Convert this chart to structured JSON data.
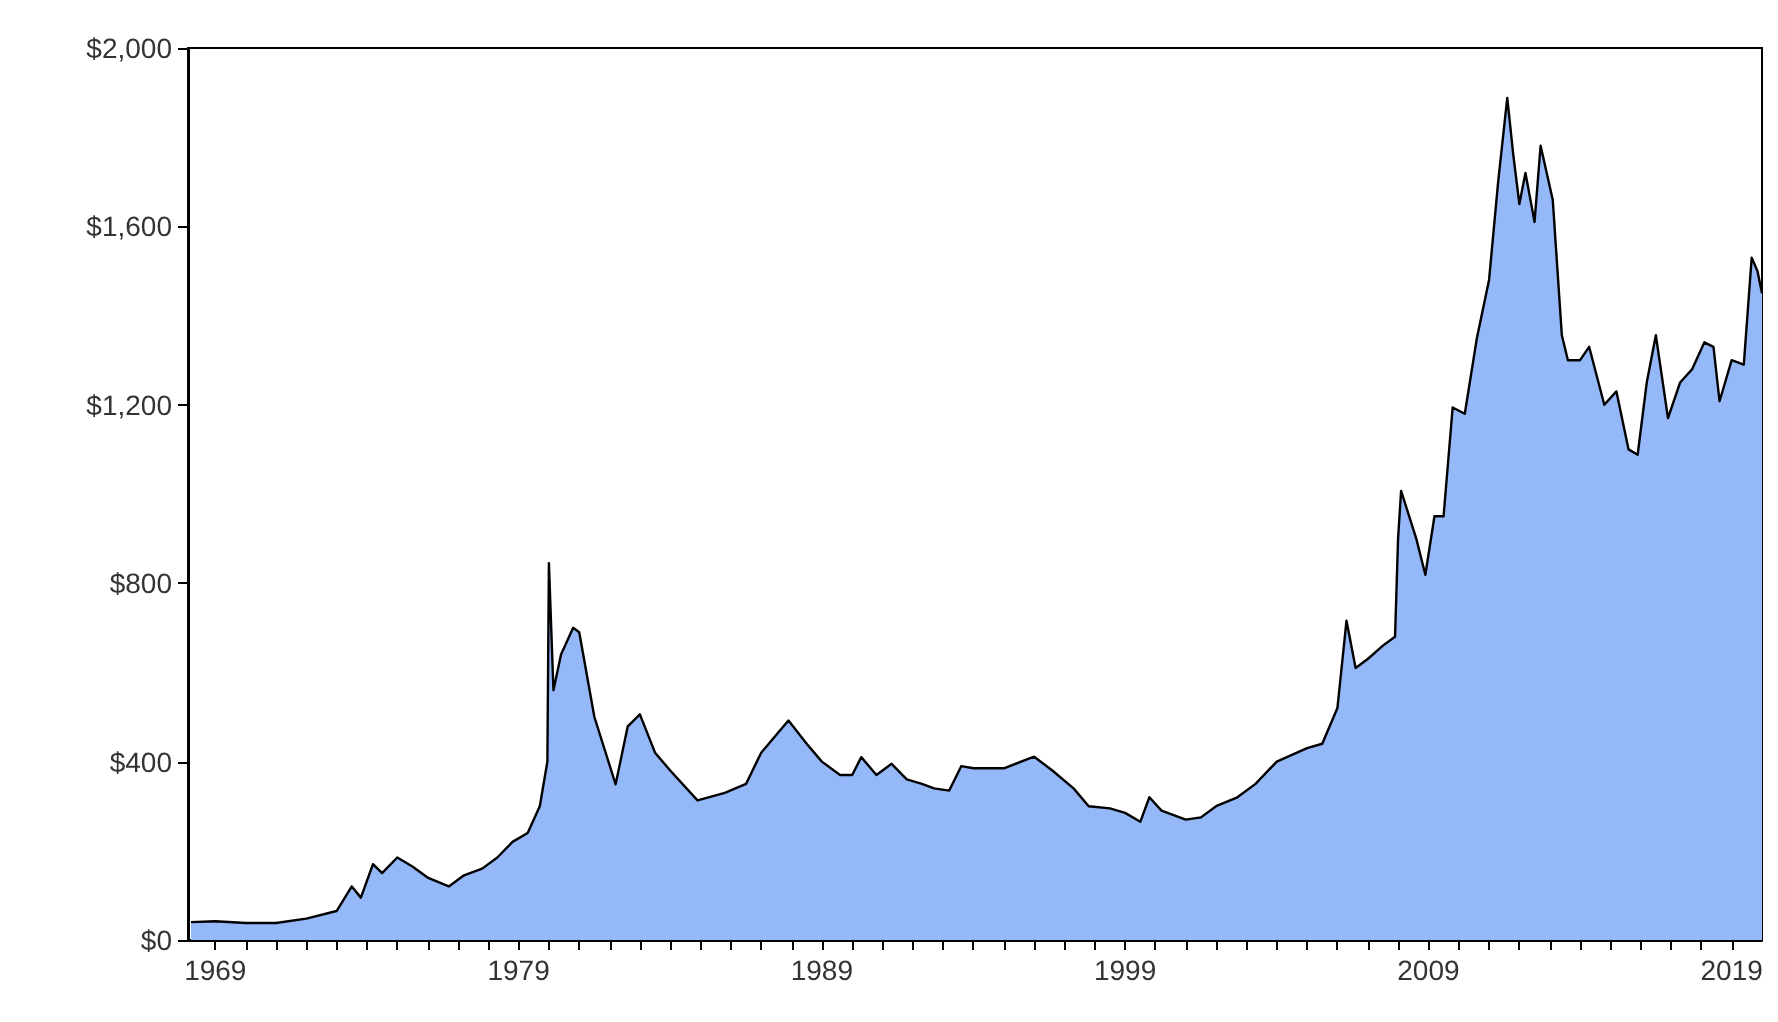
{
  "chart_data": {
    "type": "area",
    "x": [
      1968.2,
      1969,
      1970,
      1971,
      1972,
      1973,
      1973.5,
      1973.8,
      1974.2,
      1974.5,
      1975,
      1975.5,
      1976,
      1976.7,
      1977.2,
      1977.8,
      1978.3,
      1978.8,
      1979.3,
      1979.7,
      1979.95,
      1980,
      1980.15,
      1980.4,
      1980.8,
      1981,
      1981.5,
      1982.2,
      1982.6,
      1983,
      1983.5,
      1984,
      1984.9,
      1985.8,
      1986.5,
      1987,
      1987.5,
      1987.9,
      1988.5,
      1989,
      1989.6,
      1990,
      1990.3,
      1990.8,
      1991.3,
      1991.8,
      1992.3,
      1992.7,
      1993.2,
      1993.6,
      1994,
      1995,
      1996,
      1996.6,
      1997.3,
      1997.8,
      1998.5,
      1999,
      1999.5,
      1999.8,
      2000.2,
      2001,
      2001.5,
      2002,
      2002.7,
      2003.3,
      2004,
      2005,
      2005.5,
      2006,
      2006.3,
      2006.6,
      2007,
      2007.5,
      2007.9,
      2008,
      2008.1,
      2008.6,
      2008.9,
      2009.2,
      2009.5,
      2009.8,
      2010.2,
      2010.6,
      2011,
      2011.3,
      2011.6,
      2011.8,
      2012,
      2012.2,
      2012.5,
      2012.7,
      2013.1,
      2013.4,
      2013.6,
      2014,
      2014.3,
      2014.8,
      2015.2,
      2015.6,
      2015.9,
      2016.2,
      2016.5,
      2016.9,
      2017.3,
      2017.7,
      2018.1,
      2018.4,
      2018.6,
      2019,
      2019.4,
      2019.66,
      2019.85,
      2020
    ],
    "series": [
      {
        "color": "#94b8f8",
        "values": [
          40,
          42,
          38,
          38,
          48,
          65,
          120,
          95,
          170,
          150,
          185,
          165,
          140,
          120,
          145,
          160,
          185,
          220,
          240,
          300,
          400,
          845,
          560,
          640,
          700,
          690,
          500,
          349,
          479,
          506,
          420,
          380,
          313,
          330,
          350,
          420,
          460,
          492,
          440,
          400,
          370,
          370,
          410,
          370,
          395,
          360,
          350,
          340,
          335,
          390,
          385,
          385,
          411,
          380,
          340,
          300,
          295,
          285,
          265,
          320,
          290,
          270,
          275,
          300,
          320,
          350,
          400,
          430,
          440,
          520,
          716,
          610,
          630,
          660,
          680,
          900,
          1007,
          900,
          819,
          950,
          950,
          1194,
          1180,
          1350,
          1480,
          1700,
          1888,
          1760,
          1650,
          1720,
          1610,
          1781,
          1660,
          1356,
          1300,
          1300,
          1330,
          1200,
          1230,
          1100,
          1088,
          1250,
          1356,
          1170,
          1250,
          1280,
          1340,
          1330,
          1208,
          1300,
          1290,
          1530,
          1500,
          1450
        ]
      }
    ],
    "xlim": [
      1968.1,
      2020.0
    ],
    "xticks": [
      1969,
      {
        "value": 1970,
        "label": null
      },
      {
        "value": 1971,
        "label": null
      },
      {
        "value": 1972,
        "label": null
      },
      {
        "value": 1973,
        "label": null
      },
      {
        "value": 1974,
        "label": null
      },
      {
        "value": 1975,
        "label": null
      },
      {
        "value": 1976,
        "label": null
      },
      {
        "value": 1977,
        "label": null
      },
      {
        "value": 1978,
        "label": null
      },
      1979,
      {
        "value": 1980,
        "label": null
      },
      {
        "value": 1981,
        "label": null
      },
      {
        "value": 1982,
        "label": null
      },
      {
        "value": 1983,
        "label": null
      },
      {
        "value": 1984,
        "label": null
      },
      {
        "value": 1985,
        "label": null
      },
      {
        "value": 1986,
        "label": null
      },
      {
        "value": 1987,
        "label": null
      },
      {
        "value": 1988,
        "label": null
      },
      1989,
      {
        "value": 1990,
        "label": null
      },
      {
        "value": 1991,
        "label": null
      },
      {
        "value": 1992,
        "label": null
      },
      {
        "value": 1993,
        "label": null
      },
      {
        "value": 1994,
        "label": null
      },
      {
        "value": 1995,
        "label": null
      },
      {
        "value": 1996,
        "label": null
      },
      {
        "value": 1997,
        "label": null
      },
      {
        "value": 1998,
        "label": null
      },
      1999,
      {
        "value": 2000,
        "label": null
      },
      {
        "value": 2001,
        "label": null
      },
      {
        "value": 2002,
        "label": null
      },
      {
        "value": 2003,
        "label": null
      },
      {
        "value": 2004,
        "label": null
      },
      {
        "value": 2005,
        "label": null
      },
      {
        "value": 2006,
        "label": null
      },
      {
        "value": 2007,
        "label": null
      },
      {
        "value": 2008,
        "label": null
      },
      2009,
      {
        "value": 2010,
        "label": null
      },
      {
        "value": 2011,
        "label": null
      },
      {
        "value": 2012,
        "label": null
      },
      {
        "value": 2013,
        "label": null
      },
      {
        "value": 2014,
        "label": null
      },
      {
        "value": 2015,
        "label": null
      },
      {
        "value": 2016,
        "label": null
      },
      {
        "value": 2017,
        "label": null
      },
      {
        "value": 2018,
        "label": null
      },
      2019
    ],
    "ylim": [
      0,
      2000
    ],
    "yticks": [
      {
        "value": 0,
        "label": "$0"
      },
      {
        "value": 400,
        "label": "$400"
      },
      {
        "value": 800,
        "label": "$800"
      },
      {
        "value": 1200,
        "label": "$1,200"
      },
      {
        "value": 1600,
        "label": "$1,600"
      },
      {
        "value": 2000,
        "label": "$2,000"
      }
    ],
    "grid": false,
    "marker": "none",
    "line_style": "solid"
  }
}
